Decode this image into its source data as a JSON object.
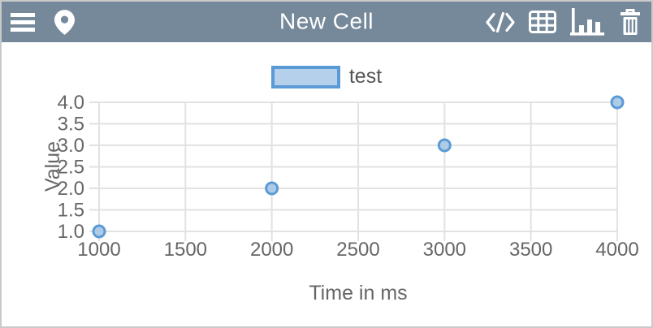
{
  "window_title": "New Cell",
  "colors": {
    "header_bg": "#76899B",
    "window_border": "#C9C9C9",
    "gridline": "#E2E2E2",
    "tick_text": "#666666",
    "point_fill": "#A6C7E7",
    "point_stroke": "#5B9BD5"
  },
  "header": {
    "title": "New Cell",
    "left_buttons": [
      {
        "icon": "menu-icon"
      },
      {
        "icon": "location-pin-icon"
      }
    ],
    "right_buttons": [
      {
        "icon": "code-icon",
        "active": false
      },
      {
        "icon": "table-icon",
        "active": false
      },
      {
        "icon": "bar-chart-icon",
        "active": true
      },
      {
        "icon": "trash-icon",
        "active": false
      }
    ]
  },
  "legend": {
    "label": "test",
    "swatch_fill": "#B5D0EB",
    "swatch_border": "#5B9BD5",
    "position": "top-center"
  },
  "chart_data": {
    "type": "scatter",
    "series": [
      {
        "name": "test",
        "points": [
          {
            "x": 1000,
            "y": 1.0
          },
          {
            "x": 2000,
            "y": 2.0
          },
          {
            "x": 3000,
            "y": 3.0
          },
          {
            "x": 4000,
            "y": 4.0
          }
        ]
      }
    ],
    "xlabel": "Time in ms",
    "ylabel": "Value",
    "xlim": [
      1000,
      4000
    ],
    "ylim": [
      1.0,
      4.0
    ],
    "x_ticks": {
      "values": [
        1000,
        1500,
        2000,
        2500,
        3000,
        3500,
        4000
      ],
      "labels": [
        "1000",
        "1500",
        "2000",
        "2500",
        "3000",
        "3500",
        "4000"
      ]
    },
    "y_ticks": {
      "values": [
        1.0,
        1.5,
        2.0,
        2.5,
        3.0,
        3.5,
        4.0
      ],
      "labels": [
        "1.0",
        "1.5",
        "2.0",
        "2.5",
        "3.0",
        "3.5",
        "4.0"
      ]
    },
    "grid": true,
    "legend_position": "top-center",
    "point_color": {
      "fill": "#A6C7E7",
      "stroke": "#5B9BD5"
    }
  }
}
